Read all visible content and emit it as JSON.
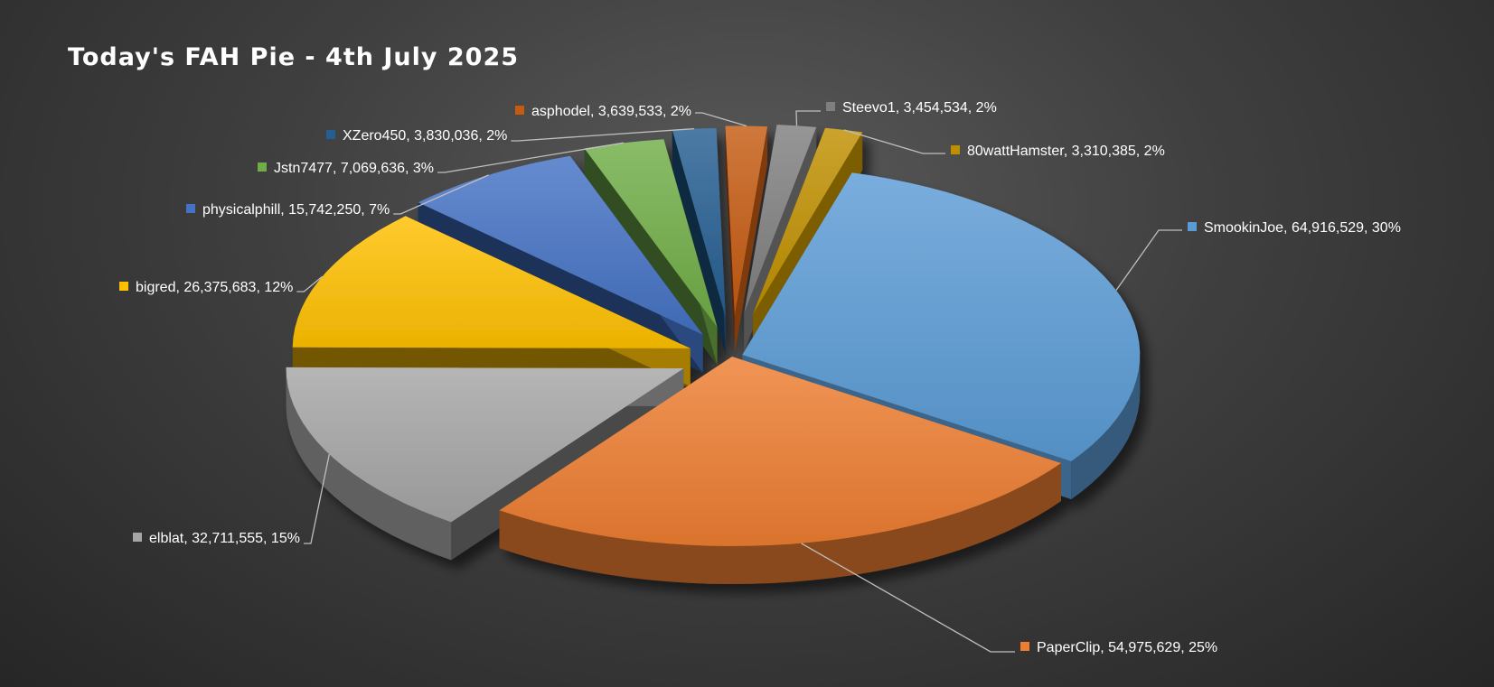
{
  "chart_data": {
    "type": "pie",
    "title": "Today's FAH Pie - 4th July 2025",
    "legend": "none",
    "data_labels": "name, value, percent",
    "slices": [
      {
        "name": "SmookinJoe",
        "value": 64916529,
        "value_label": "64,916,529",
        "percent": "30%",
        "color": "#5b9bd5"
      },
      {
        "name": "PaperClip",
        "value": 54975629,
        "value_label": "54,975,629",
        "percent": "25%",
        "color": "#ed7d31"
      },
      {
        "name": "elblat",
        "value": 32711555,
        "value_label": "32,711,555",
        "percent": "15%",
        "color": "#a5a5a5"
      },
      {
        "name": "bigred",
        "value": 26375683,
        "value_label": "26,375,683",
        "percent": "12%",
        "color": "#ffc000"
      },
      {
        "name": "physicalphill",
        "value": 15742250,
        "value_label": "15,742,250",
        "percent": "7%",
        "color": "#4472c4"
      },
      {
        "name": "Jstn7477",
        "value": 7069636,
        "value_label": "7,069,636",
        "percent": "3%",
        "color": "#70ad47"
      },
      {
        "name": "XZero450",
        "value": 3830036,
        "value_label": "3,830,036",
        "percent": "2%",
        "color": "#255e91"
      },
      {
        "name": "asphodel",
        "value": 3639533,
        "value_label": "3,639,533",
        "percent": "2%",
        "color": "#c55a11"
      },
      {
        "name": "Steevo1",
        "value": 3454534,
        "value_label": "3,454,534",
        "percent": "2%",
        "color": "#7f7f7f"
      },
      {
        "name": "80wattHamster",
        "value": 3310385,
        "value_label": "3,310,385",
        "percent": "2%",
        "color": "#bf8f00"
      }
    ]
  }
}
